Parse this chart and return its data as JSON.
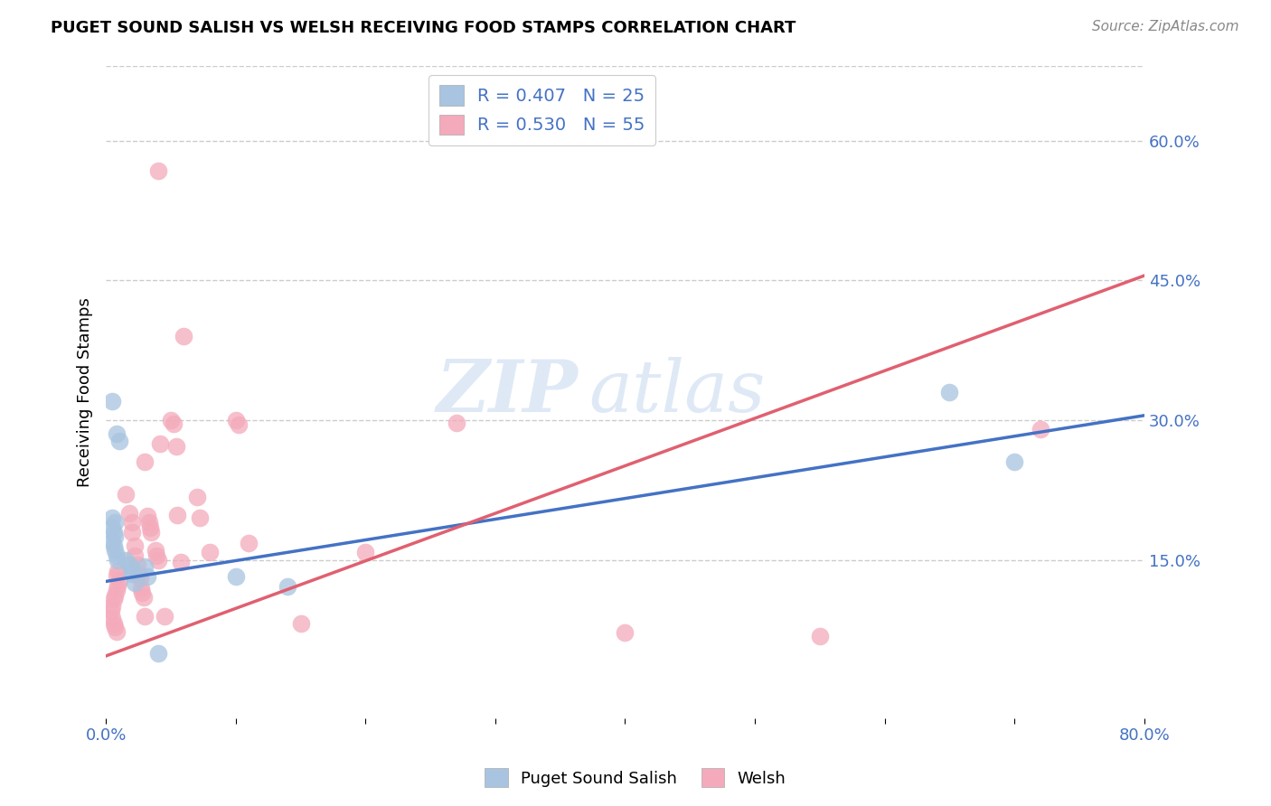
{
  "title": "PUGET SOUND SALISH VS WELSH RECEIVING FOOD STAMPS CORRELATION CHART",
  "source": "Source: ZipAtlas.com",
  "ylabel": "Receiving Food Stamps",
  "xlim": [
    0,
    0.8
  ],
  "ylim": [
    -0.02,
    0.68
  ],
  "yticks": [
    0.15,
    0.3,
    0.45,
    0.6
  ],
  "yticklabels": [
    "15.0%",
    "30.0%",
    "45.0%",
    "60.0%"
  ],
  "blue_R": 0.407,
  "blue_N": 25,
  "pink_R": 0.53,
  "pink_N": 55,
  "blue_color": "#A8C4E0",
  "pink_color": "#F4AABB",
  "blue_line_color": "#4472C4",
  "pink_line_color": "#E06070",
  "legend_label_blue": "Puget Sound Salish",
  "legend_label_pink": "Welsh",
  "watermark_1": "ZIP",
  "watermark_2": "atlas",
  "grid_color": "#CCCCCC",
  "blue_line_x0": 0.0,
  "blue_line_y0": 0.127,
  "blue_line_x1": 0.8,
  "blue_line_y1": 0.305,
  "pink_line_x0": 0.0,
  "pink_line_y0": 0.047,
  "pink_line_x1": 0.8,
  "pink_line_y1": 0.455,
  "blue_points": [
    [
      0.005,
      0.32
    ],
    [
      0.008,
      0.285
    ],
    [
      0.01,
      0.278
    ],
    [
      0.005,
      0.195
    ],
    [
      0.007,
      0.19
    ],
    [
      0.005,
      0.185
    ],
    [
      0.006,
      0.18
    ],
    [
      0.007,
      0.175
    ],
    [
      0.005,
      0.17
    ],
    [
      0.006,
      0.165
    ],
    [
      0.007,
      0.16
    ],
    [
      0.008,
      0.155
    ],
    [
      0.009,
      0.15
    ],
    [
      0.015,
      0.15
    ],
    [
      0.018,
      0.145
    ],
    [
      0.02,
      0.14
    ],
    [
      0.02,
      0.135
    ],
    [
      0.022,
      0.125
    ],
    [
      0.03,
      0.143
    ],
    [
      0.032,
      0.132
    ],
    [
      0.04,
      0.05
    ],
    [
      0.1,
      0.132
    ],
    [
      0.14,
      0.122
    ],
    [
      0.65,
      0.33
    ],
    [
      0.7,
      0.255
    ]
  ],
  "pink_points": [
    [
      0.004,
      0.095
    ],
    [
      0.005,
      0.1
    ],
    [
      0.006,
      0.108
    ],
    [
      0.007,
      0.112
    ],
    [
      0.008,
      0.118
    ],
    [
      0.009,
      0.123
    ],
    [
      0.01,
      0.128
    ],
    [
      0.008,
      0.133
    ],
    [
      0.009,
      0.138
    ],
    [
      0.005,
      0.088
    ],
    [
      0.006,
      0.082
    ],
    [
      0.007,
      0.078
    ],
    [
      0.008,
      0.073
    ],
    [
      0.015,
      0.22
    ],
    [
      0.018,
      0.2
    ],
    [
      0.02,
      0.19
    ],
    [
      0.02,
      0.18
    ],
    [
      0.022,
      0.165
    ],
    [
      0.022,
      0.155
    ],
    [
      0.024,
      0.145
    ],
    [
      0.025,
      0.135
    ],
    [
      0.026,
      0.13
    ],
    [
      0.027,
      0.12
    ],
    [
      0.028,
      0.115
    ],
    [
      0.029,
      0.11
    ],
    [
      0.03,
      0.09
    ],
    [
      0.03,
      0.255
    ],
    [
      0.032,
      0.197
    ],
    [
      0.033,
      0.19
    ],
    [
      0.034,
      0.185
    ],
    [
      0.035,
      0.18
    ],
    [
      0.038,
      0.16
    ],
    [
      0.039,
      0.155
    ],
    [
      0.04,
      0.15
    ],
    [
      0.04,
      0.568
    ],
    [
      0.042,
      0.275
    ],
    [
      0.045,
      0.09
    ],
    [
      0.05,
      0.3
    ],
    [
      0.052,
      0.296
    ],
    [
      0.054,
      0.272
    ],
    [
      0.055,
      0.198
    ],
    [
      0.058,
      0.148
    ],
    [
      0.06,
      0.39
    ],
    [
      0.07,
      0.218
    ],
    [
      0.072,
      0.195
    ],
    [
      0.08,
      0.158
    ],
    [
      0.1,
      0.3
    ],
    [
      0.102,
      0.295
    ],
    [
      0.11,
      0.168
    ],
    [
      0.15,
      0.082
    ],
    [
      0.2,
      0.158
    ],
    [
      0.27,
      0.297
    ],
    [
      0.4,
      0.072
    ],
    [
      0.55,
      0.068
    ],
    [
      0.72,
      0.29
    ]
  ]
}
